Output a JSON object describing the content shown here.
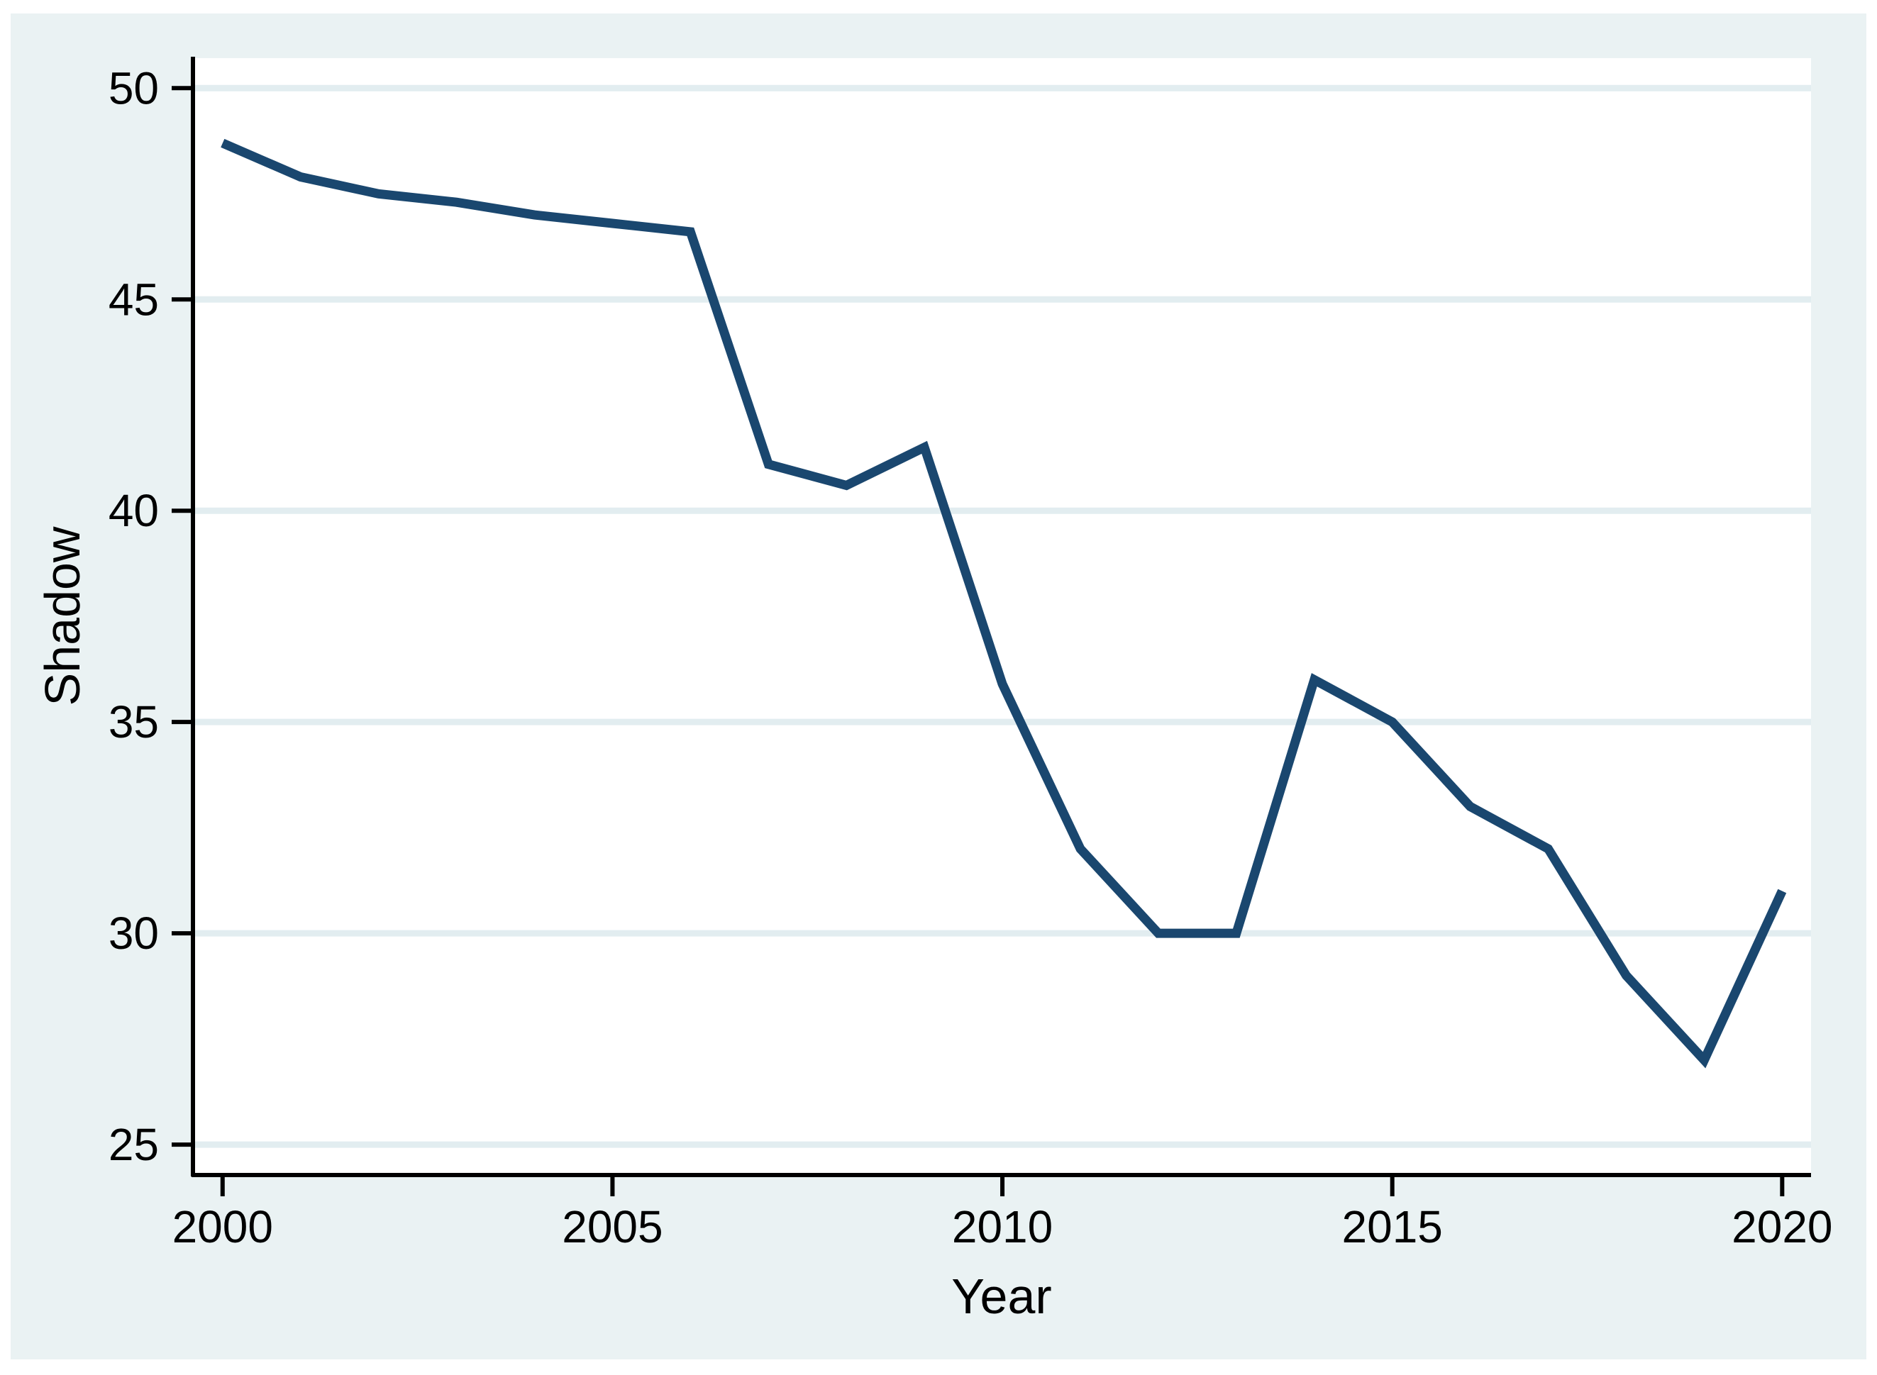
{
  "chart_data": {
    "type": "line",
    "title": "",
    "xlabel": "Year",
    "ylabel": "Shadow",
    "x": [
      2000,
      2001,
      2002,
      2003,
      2004,
      2005,
      2006,
      2007,
      2008,
      2009,
      2010,
      2011,
      2012,
      2013,
      2014,
      2015,
      2016,
      2017,
      2018,
      2019,
      2020
    ],
    "series": [
      {
        "name": "Shadow",
        "values": [
          48.7,
          47.9,
          47.5,
          47.3,
          47.0,
          46.8,
          46.6,
          41.1,
          40.6,
          41.5,
          35.9,
          32.0,
          30.0,
          30.0,
          36.0,
          35.0,
          33.0,
          32.0,
          29.0,
          27.0,
          31.0
        ]
      }
    ],
    "xticks": [
      2000,
      2005,
      2010,
      2015,
      2020
    ],
    "yticks": [
      25,
      30,
      35,
      40,
      45,
      50
    ],
    "xlim": [
      1999.62,
      2020.37
    ],
    "ylim": [
      24.28,
      50.71
    ],
    "grid": "horizontal",
    "legend": "none"
  },
  "colors": {
    "page_background": "#ffffff",
    "canvas_background": "#eaf2f3",
    "plot_background": "#ffffff",
    "gridline": "#e2edf0",
    "axis": "#000000",
    "text": "#000000",
    "line": "#1a476f"
  }
}
